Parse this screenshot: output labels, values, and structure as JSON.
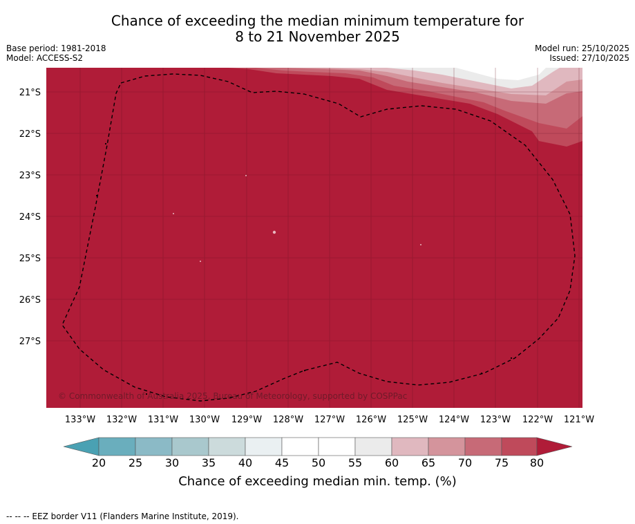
{
  "title": {
    "line1": "Chance of exceeding the median minimum temperature for",
    "line2": "8 to 21 November 2025"
  },
  "meta_left": {
    "base_period": "Base period: 1981-2018",
    "model": "Model: ACCESS-S2"
  },
  "meta_right": {
    "model_run": "Model run: 25/10/2025",
    "issued": "Issued: 27/10/2025"
  },
  "map": {
    "lon_labels": [
      "133°W",
      "132°W",
      "131°W",
      "130°W",
      "129°W",
      "128°W",
      "127°W",
      "126°W",
      "125°W",
      "124°W",
      "123°W",
      "122°W",
      "121°W"
    ],
    "lat_labels": [
      "21°S",
      "22°S",
      "23°S",
      "24°S",
      "25°S",
      "26°S",
      "27°S"
    ],
    "copyright": "© Commonwealth of Australia 2025, Bureau of Meteorology, supported by COSPPac",
    "dominant_category": "80+"
  },
  "colorbar": {
    "ticks": [
      "20",
      "25",
      "30",
      "35",
      "40",
      "45",
      "50",
      "55",
      "60",
      "65",
      "70",
      "75",
      "80"
    ],
    "colors": [
      "#6aaebd",
      "#8bbac6",
      "#a9c8cd",
      "#ccdbdc",
      "#eaf0f2",
      "#ffffff",
      "#ffffff",
      "#ebebeb",
      "#e0b8bf",
      "#d4949c",
      "#c76a77",
      "#bf4a5b"
    ],
    "under_color": "#4aa1b3",
    "over_color": "#b01c38",
    "label": "Chance of exceeding median min. temp. (%)"
  },
  "legend_footnote": "--  --  -- EEZ border V11 (Flanders Marine Institute, 2019)."
}
